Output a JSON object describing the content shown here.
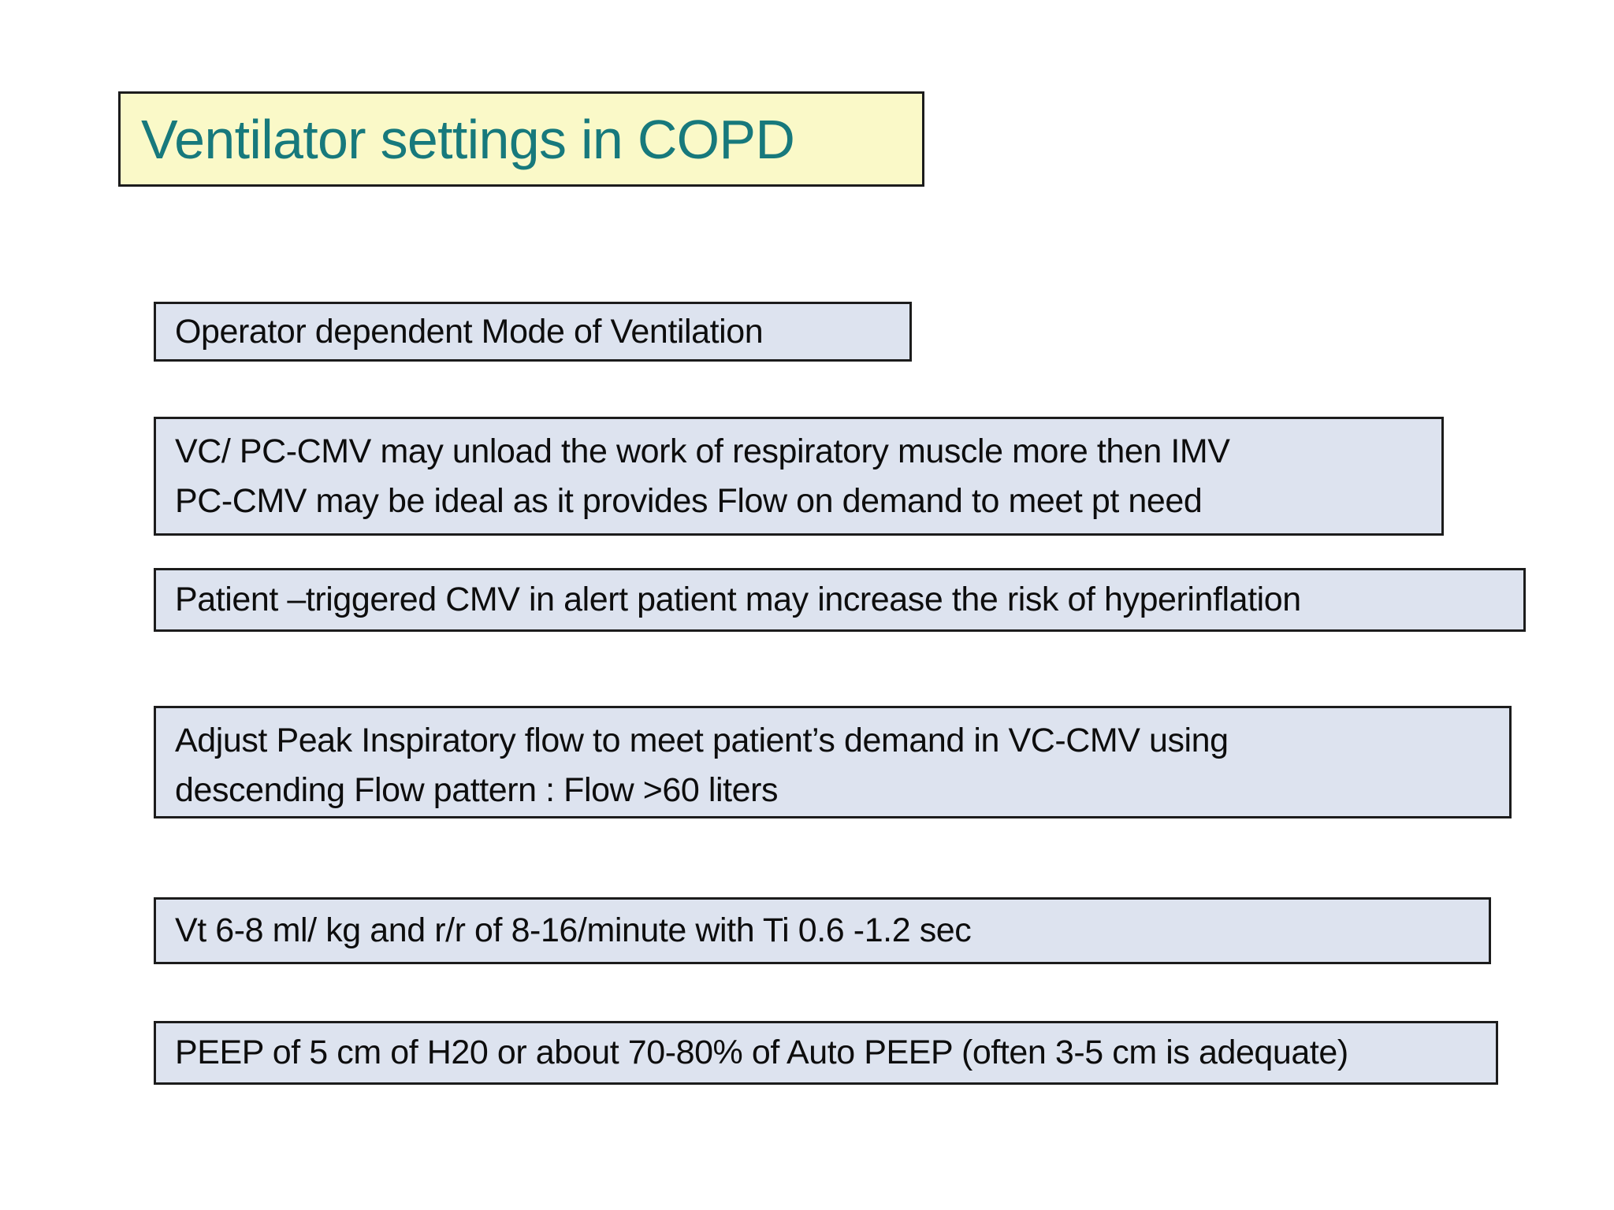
{
  "slide": {
    "title": "Ventilator settings in COPD",
    "boxes": [
      {
        "id": "operator-mode",
        "lines": [
          "Operator dependent Mode of Ventilation"
        ]
      },
      {
        "id": "cmv-unload",
        "lines": [
          "VC/ PC-CMV may unload the work of respiratory muscle more then IMV",
          "PC-CMV may be ideal as it provides Flow on demand to meet pt need"
        ]
      },
      {
        "id": "patient-trigger",
        "lines": [
          "Patient –triggered CMV in alert patient may increase the risk of hyperinflation"
        ]
      },
      {
        "id": "peak-flow",
        "lines": [
          "Adjust Peak Inspiratory flow to meet patient’s demand in VC-CMV using",
          "descending Flow pattern : Flow >60 liters"
        ]
      },
      {
        "id": "vt-rate",
        "lines": [
          "Vt 6-8 ml/ kg and r/r of 8-16/minute with Ti 0.6 -1.2 sec"
        ]
      },
      {
        "id": "peep",
        "lines": [
          "PEEP of 5 cm of H20 or about 70-80% of Auto PEEP (often 3-5 cm is adequate)"
        ]
      }
    ],
    "colors": {
      "page_bg": "#ffffff",
      "title_fill": "#faf9c8",
      "title_text": "#17797c",
      "box_fill": "#dde3ef",
      "box_border": "#1c1c1c",
      "body_text": "#0d0d0d"
    }
  }
}
